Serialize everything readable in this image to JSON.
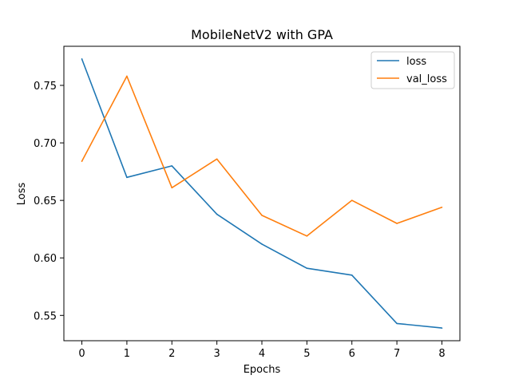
{
  "chart_data": {
    "type": "line",
    "title": "MobileNetV2 with GPA",
    "xlabel": "Epochs",
    "ylabel": "Loss",
    "x": [
      0,
      1,
      2,
      3,
      4,
      5,
      6,
      7,
      8
    ],
    "xticks": [
      "0",
      "1",
      "2",
      "3",
      "4",
      "5",
      "6",
      "7",
      "8"
    ],
    "yticks": [
      "0.55",
      "0.60",
      "0.65",
      "0.70",
      "0.75"
    ],
    "xlim": [
      -0.4,
      8.4
    ],
    "ylim": [
      0.528,
      0.784
    ],
    "grid": false,
    "legend_position": "top-right",
    "series": [
      {
        "name": "loss",
        "color": "#1f77b4",
        "values": [
          0.773,
          0.67,
          0.68,
          0.638,
          0.612,
          0.591,
          0.585,
          0.543,
          0.539
        ]
      },
      {
        "name": "val_loss",
        "color": "#ff7f0e",
        "values": [
          0.684,
          0.758,
          0.661,
          0.686,
          0.637,
          0.619,
          0.65,
          0.63,
          0.644
        ]
      }
    ]
  }
}
